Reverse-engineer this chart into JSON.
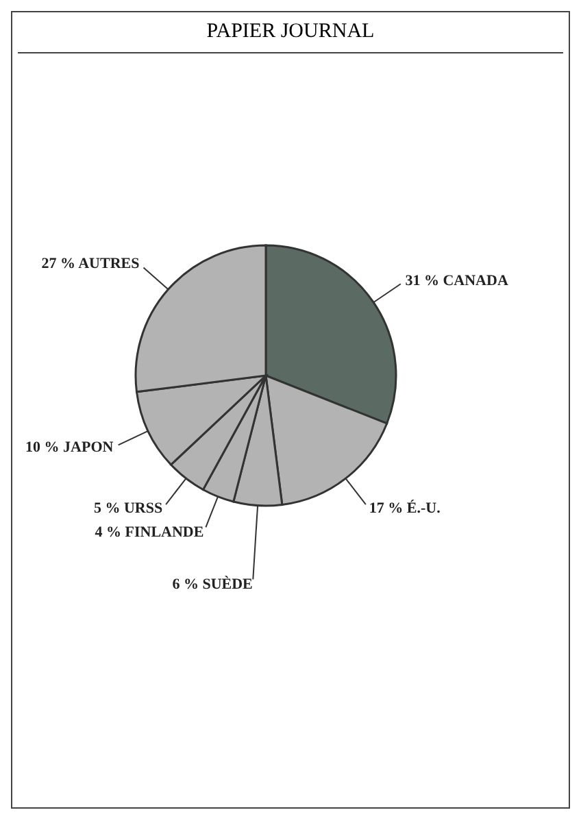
{
  "chart_data": {
    "type": "pie",
    "title": "PAPIER JOURNAL",
    "categories": [
      "CANADA",
      "É.-U.",
      "SUÈDE",
      "FINLANDE",
      "URSS",
      "JAPON",
      "AUTRES"
    ],
    "values": [
      31,
      17,
      6,
      4,
      5,
      10,
      27
    ],
    "value_labels": [
      "31 %",
      "17 %",
      "6 %",
      "4 %",
      "5 %",
      "10 %",
      "27 %"
    ],
    "colors": [
      "#5b6b63",
      "#b3b3b3",
      "#b3b3b3",
      "#b3b3b3",
      "#b3b3b3",
      "#b3b3b3",
      "#b3b3b3"
    ]
  }
}
